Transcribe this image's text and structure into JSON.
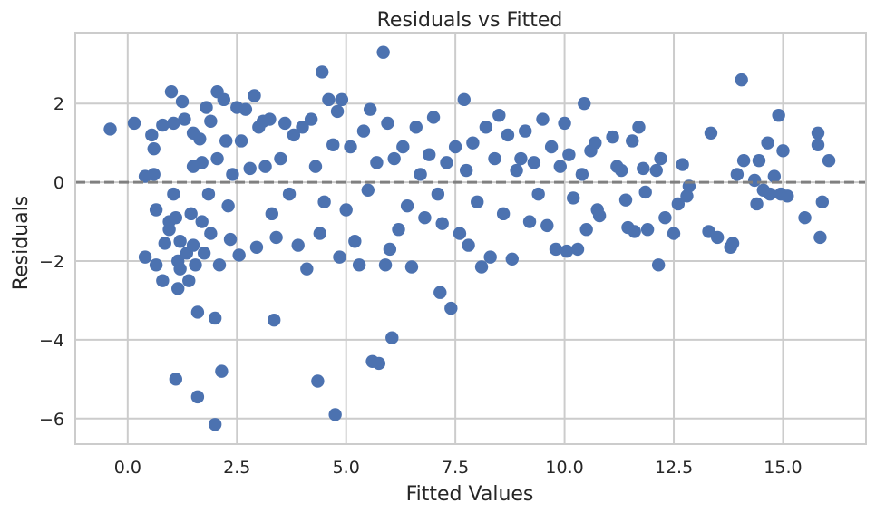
{
  "chart_data": {
    "type": "scatter",
    "title": "Residuals vs Fitted",
    "xlabel": "Fitted Values",
    "ylabel": "Residuals",
    "xlim": [
      -1.2,
      16.9
    ],
    "ylim": [
      -6.65,
      3.8
    ],
    "xticks": [
      0.0,
      2.5,
      5.0,
      7.5,
      10.0,
      12.5,
      15.0
    ],
    "xtick_labels": [
      "0.0",
      "2.5",
      "5.0",
      "7.5",
      "10.0",
      "12.5",
      "15.0"
    ],
    "yticks": [
      -6,
      -4,
      -2,
      0,
      2
    ],
    "ytick_labels": [
      "−6",
      "−4",
      "−2",
      "0",
      "2"
    ],
    "grid": true,
    "reference_line": {
      "y": 0,
      "style": "dashed",
      "color": "#808080"
    },
    "point_color": "#4c72b0",
    "points": [
      [
        -0.4,
        1.35
      ],
      [
        0.15,
        1.5
      ],
      [
        0.4,
        0.15
      ],
      [
        0.4,
        -1.9
      ],
      [
        0.55,
        1.2
      ],
      [
        0.6,
        0.85
      ],
      [
        0.6,
        0.2
      ],
      [
        0.65,
        -0.7
      ],
      [
        0.65,
        -2.1
      ],
      [
        0.8,
        1.45
      ],
      [
        0.8,
        -2.5
      ],
      [
        0.85,
        -1.55
      ],
      [
        0.95,
        -1.2
      ],
      [
        0.95,
        -1.0
      ],
      [
        1.0,
        2.3
      ],
      [
        1.05,
        1.5
      ],
      [
        1.05,
        -0.3
      ],
      [
        1.1,
        -0.9
      ],
      [
        1.1,
        -5.0
      ],
      [
        1.15,
        -2.7
      ],
      [
        1.15,
        -2.0
      ],
      [
        1.2,
        -2.2
      ],
      [
        1.2,
        -1.5
      ],
      [
        1.25,
        2.05
      ],
      [
        1.3,
        1.6
      ],
      [
        1.35,
        -1.8
      ],
      [
        1.4,
        -2.5
      ],
      [
        1.45,
        -0.8
      ],
      [
        1.5,
        1.25
      ],
      [
        1.5,
        0.4
      ],
      [
        1.5,
        -1.6
      ],
      [
        1.55,
        -2.1
      ],
      [
        1.6,
        -3.3
      ],
      [
        1.6,
        -5.45
      ],
      [
        1.65,
        1.1
      ],
      [
        1.7,
        0.5
      ],
      [
        1.7,
        -1.0
      ],
      [
        1.75,
        -1.8
      ],
      [
        1.8,
        1.9
      ],
      [
        1.85,
        -0.3
      ],
      [
        1.9,
        1.55
      ],
      [
        1.9,
        -1.3
      ],
      [
        2.0,
        -3.45
      ],
      [
        2.0,
        -6.15
      ],
      [
        2.05,
        2.3
      ],
      [
        2.05,
        0.6
      ],
      [
        2.1,
        -2.1
      ],
      [
        2.15,
        -4.8
      ],
      [
        2.2,
        2.1
      ],
      [
        2.25,
        1.05
      ],
      [
        2.3,
        -0.6
      ],
      [
        2.35,
        -1.45
      ],
      [
        2.4,
        0.2
      ],
      [
        2.5,
        1.9
      ],
      [
        2.55,
        -1.85
      ],
      [
        2.6,
        1.05
      ],
      [
        2.7,
        1.85
      ],
      [
        2.8,
        0.35
      ],
      [
        2.9,
        2.2
      ],
      [
        2.95,
        -1.65
      ],
      [
        3.0,
        1.4
      ],
      [
        3.1,
        1.55
      ],
      [
        3.15,
        0.4
      ],
      [
        3.25,
        1.6
      ],
      [
        3.3,
        -0.8
      ],
      [
        3.35,
        -3.5
      ],
      [
        3.4,
        -1.4
      ],
      [
        3.5,
        0.6
      ],
      [
        3.6,
        1.5
      ],
      [
        3.7,
        -0.3
      ],
      [
        3.8,
        1.2
      ],
      [
        3.9,
        -1.6
      ],
      [
        4.0,
        1.4
      ],
      [
        4.1,
        -2.2
      ],
      [
        4.2,
        1.6
      ],
      [
        4.3,
        0.4
      ],
      [
        4.35,
        -5.05
      ],
      [
        4.4,
        -1.3
      ],
      [
        4.45,
        2.8
      ],
      [
        4.5,
        -0.5
      ],
      [
        4.6,
        2.1
      ],
      [
        4.7,
        0.95
      ],
      [
        4.75,
        -5.9
      ],
      [
        4.8,
        1.8
      ],
      [
        4.85,
        -1.9
      ],
      [
        4.9,
        2.1
      ],
      [
        5.0,
        -0.7
      ],
      [
        5.1,
        0.9
      ],
      [
        5.2,
        -1.5
      ],
      [
        5.3,
        -2.1
      ],
      [
        5.4,
        1.3
      ],
      [
        5.5,
        -0.2
      ],
      [
        5.55,
        1.85
      ],
      [
        5.6,
        -4.55
      ],
      [
        5.7,
        0.5
      ],
      [
        5.75,
        -4.6
      ],
      [
        5.85,
        3.3
      ],
      [
        5.9,
        -2.1
      ],
      [
        5.95,
        1.5
      ],
      [
        6.0,
        -1.7
      ],
      [
        6.05,
        -3.95
      ],
      [
        6.1,
        0.6
      ],
      [
        6.2,
        -1.2
      ],
      [
        6.3,
        0.9
      ],
      [
        6.4,
        -0.6
      ],
      [
        6.5,
        -2.15
      ],
      [
        6.6,
        1.4
      ],
      [
        6.7,
        0.2
      ],
      [
        6.8,
        -0.9
      ],
      [
        6.9,
        0.7
      ],
      [
        7.0,
        1.65
      ],
      [
        7.1,
        -0.3
      ],
      [
        7.15,
        -2.8
      ],
      [
        7.2,
        -1.05
      ],
      [
        7.3,
        0.5
      ],
      [
        7.4,
        -3.2
      ],
      [
        7.5,
        0.9
      ],
      [
        7.6,
        -1.3
      ],
      [
        7.7,
        2.1
      ],
      [
        7.75,
        0.3
      ],
      [
        7.8,
        -1.6
      ],
      [
        7.9,
        1.0
      ],
      [
        8.0,
        -0.5
      ],
      [
        8.1,
        -2.15
      ],
      [
        8.2,
        1.4
      ],
      [
        8.3,
        -1.9
      ],
      [
        8.4,
        0.6
      ],
      [
        8.5,
        1.7
      ],
      [
        8.6,
        -0.8
      ],
      [
        8.7,
        1.2
      ],
      [
        8.8,
        -1.95
      ],
      [
        8.9,
        0.3
      ],
      [
        9.0,
        0.6
      ],
      [
        9.1,
        1.3
      ],
      [
        9.2,
        -1.0
      ],
      [
        9.3,
        0.5
      ],
      [
        9.4,
        -0.3
      ],
      [
        9.5,
        1.6
      ],
      [
        9.6,
        -1.1
      ],
      [
        9.7,
        0.9
      ],
      [
        9.8,
        -1.7
      ],
      [
        9.9,
        0.4
      ],
      [
        10.0,
        1.5
      ],
      [
        10.05,
        -1.75
      ],
      [
        10.1,
        0.7
      ],
      [
        10.2,
        -0.4
      ],
      [
        10.3,
        -1.7
      ],
      [
        10.4,
        0.2
      ],
      [
        10.45,
        2.0
      ],
      [
        10.5,
        -1.2
      ],
      [
        10.6,
        0.8
      ],
      [
        10.7,
        1.0
      ],
      [
        10.75,
        -0.7
      ],
      [
        10.8,
        -0.85
      ],
      [
        11.1,
        1.15
      ],
      [
        11.2,
        0.4
      ],
      [
        11.3,
        0.3
      ],
      [
        11.4,
        -0.45
      ],
      [
        11.45,
        -1.15
      ],
      [
        11.55,
        1.05
      ],
      [
        11.6,
        -1.25
      ],
      [
        11.7,
        1.4
      ],
      [
        11.8,
        0.35
      ],
      [
        11.85,
        -0.25
      ],
      [
        11.9,
        -1.2
      ],
      [
        12.1,
        0.3
      ],
      [
        12.15,
        -2.1
      ],
      [
        12.2,
        0.6
      ],
      [
        12.3,
        -0.9
      ],
      [
        12.5,
        -1.3
      ],
      [
        12.6,
        -0.55
      ],
      [
        12.7,
        0.45
      ],
      [
        12.8,
        -0.35
      ],
      [
        12.85,
        -0.1
      ],
      [
        13.3,
        -1.25
      ],
      [
        13.35,
        1.25
      ],
      [
        13.5,
        -1.4
      ],
      [
        13.8,
        -1.65
      ],
      [
        13.85,
        -1.55
      ],
      [
        13.95,
        0.2
      ],
      [
        14.05,
        2.6
      ],
      [
        14.1,
        0.55
      ],
      [
        14.35,
        0.05
      ],
      [
        14.4,
        -0.55
      ],
      [
        14.45,
        0.55
      ],
      [
        14.55,
        -0.2
      ],
      [
        14.65,
        1.0
      ],
      [
        14.7,
        -0.3
      ],
      [
        14.8,
        0.15
      ],
      [
        14.9,
        1.7
      ],
      [
        14.95,
        -0.3
      ],
      [
        15.0,
        0.8
      ],
      [
        15.1,
        -0.35
      ],
      [
        15.5,
        -0.9
      ],
      [
        15.8,
        1.25
      ],
      [
        15.8,
        0.95
      ],
      [
        15.85,
        -1.4
      ],
      [
        15.9,
        -0.5
      ],
      [
        16.05,
        0.55
      ]
    ]
  }
}
